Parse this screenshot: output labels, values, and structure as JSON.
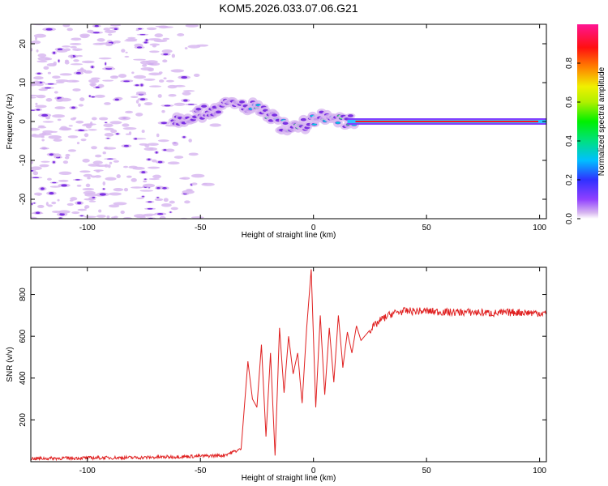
{
  "title": "KOM5.2026.033.07.06.G21",
  "chart_data": [
    {
      "type": "heatmap",
      "xlabel": "Height of straight line (km)",
      "ylabel": "Frequency (Hz)",
      "xlim": [
        -125,
        103
      ],
      "ylim": [
        -25,
        25
      ],
      "xticks": [
        -100,
        -50,
        0,
        50,
        100
      ],
      "xtick_labels": [
        "-100",
        "-50",
        "0",
        "50",
        "100"
      ],
      "yticks": [
        -20,
        -10,
        0,
        10,
        20
      ],
      "ytick_labels": [
        "-20",
        "-10",
        "0",
        "10",
        "20"
      ],
      "colorbar_label": "Normalized spectral amplitude",
      "colorbar_range": [
        0,
        1
      ],
      "colorbar_ticks": [
        0.0,
        0.2,
        0.4,
        0.6,
        0.8
      ],
      "colorbar_tick_labels": [
        "0.0",
        "0.2",
        "0.4",
        "0.6",
        "0.8"
      ],
      "colors": {
        "low": "#d8b8f0",
        "mid": "#7020e0",
        "high": "#ff1020"
      },
      "ridge": [
        {
          "x": -125,
          "f": 0
        },
        {
          "x": -60,
          "f": 0.5
        },
        {
          "x": -45,
          "f": 3
        },
        {
          "x": -37,
          "f": 4.5
        },
        {
          "x": -30,
          "f": 4
        },
        {
          "x": -25,
          "f": 3.5
        },
        {
          "x": -20,
          "f": 2
        },
        {
          "x": -15,
          "f": -1
        },
        {
          "x": -10,
          "f": -1
        },
        {
          "x": -5,
          "f": -1
        },
        {
          "x": 0,
          "f": 0.5
        },
        {
          "x": 3,
          "f": 1.5
        },
        {
          "x": 8,
          "f": 1
        },
        {
          "x": 12,
          "f": 0
        },
        {
          "x": 18,
          "f": 0
        },
        {
          "x": 103,
          "f": 0
        }
      ]
    },
    {
      "type": "line",
      "xlabel": "Height of straight line (km)",
      "ylabel": "SNR (v/v)",
      "xlim": [
        -125,
        103
      ],
      "ylim": [
        0,
        930
      ],
      "xticks": [
        -100,
        -50,
        0,
        50,
        100
      ],
      "xtick_labels": [
        "-100",
        "-50",
        "0",
        "50",
        "100"
      ],
      "yticks": [
        200,
        400,
        600,
        800
      ],
      "ytick_labels": [
        "200",
        "400",
        "600",
        "800"
      ],
      "color": "#e02020",
      "x": [
        -125,
        -100,
        -75,
        -55,
        -40,
        -32,
        -29,
        -27,
        -25,
        -23,
        -21,
        -19,
        -17,
        -15,
        -13,
        -11,
        -9,
        -7,
        -5,
        -3,
        -1,
        1,
        3,
        5,
        7,
        9,
        11,
        13,
        15,
        17,
        19,
        21,
        25,
        30,
        35,
        40,
        50,
        60,
        70,
        80,
        90,
        103
      ],
      "y": [
        15,
        18,
        20,
        25,
        30,
        60,
        480,
        300,
        260,
        560,
        120,
        520,
        30,
        640,
        330,
        600,
        420,
        520,
        280,
        640,
        920,
        260,
        700,
        320,
        640,
        380,
        700,
        450,
        620,
        520,
        650,
        580,
        630,
        680,
        710,
        720,
        720,
        715,
        715,
        710,
        715,
        710
      ]
    }
  ]
}
